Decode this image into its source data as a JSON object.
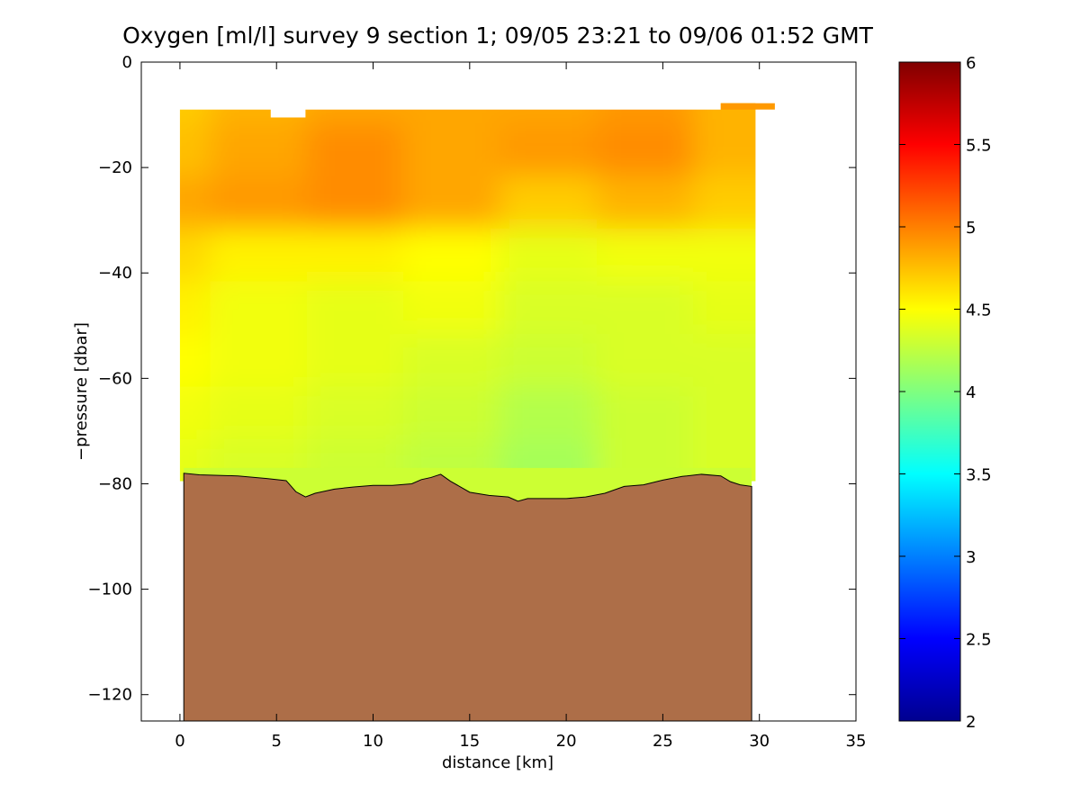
{
  "chart_data": {
    "type": "heatmap",
    "title": "Oxygen [ml/l] survey 9 section 1; 09/05 23:21 to 09/06 01:52 GMT",
    "xlabel": "distance [km]",
    "ylabel": "−pressure [dbar]",
    "xlim": [
      -2,
      35
    ],
    "ylim": [
      -125,
      0
    ],
    "x_ticks": [
      0,
      5,
      10,
      15,
      20,
      25,
      30,
      35
    ],
    "x_tick_labels": [
      "0",
      "5",
      "10",
      "15",
      "20",
      "25",
      "30",
      "35"
    ],
    "y_ticks": [
      0,
      -20,
      -40,
      -60,
      -80,
      -100,
      -120
    ],
    "y_tick_labels": [
      "0",
      "−20",
      "−40",
      "−60",
      "−80",
      "−100",
      "−120"
    ],
    "colorbar": {
      "colormap": "jet",
      "clim": [
        2,
        6
      ],
      "ticks": [
        2,
        2.5,
        3,
        3.5,
        4,
        4.5,
        5,
        5.5,
        6
      ],
      "tick_labels": [
        "2",
        "2.5",
        "3",
        "3.5",
        "4",
        "4.5",
        "5",
        "5.5",
        "6"
      ]
    },
    "field": {
      "x": [
        0,
        5,
        10,
        15,
        20,
        25,
        30
      ],
      "z": [
        -10,
        -20,
        -30,
        -40,
        -50,
        -60,
        -70,
        -80
      ],
      "values": [
        [
          4.7,
          4.8,
          4.85,
          4.85,
          4.85,
          4.9,
          4.8
        ],
        [
          4.75,
          4.85,
          4.95,
          4.85,
          4.9,
          4.95,
          4.8
        ],
        [
          4.85,
          4.9,
          4.95,
          4.85,
          4.7,
          4.8,
          4.7
        ],
        [
          4.65,
          4.55,
          4.55,
          4.5,
          4.4,
          4.45,
          4.45
        ],
        [
          4.55,
          4.45,
          4.4,
          4.45,
          4.35,
          4.35,
          4.4
        ],
        [
          4.5,
          4.45,
          4.4,
          4.35,
          4.3,
          4.35,
          4.35
        ],
        [
          4.45,
          4.4,
          4.35,
          4.3,
          4.2,
          4.3,
          4.35
        ],
        [
          4.4,
          4.35,
          4.3,
          4.25,
          4.15,
          4.3,
          4.35
        ]
      ]
    },
    "bottom_profile": {
      "x": [
        0.2,
        1,
        3,
        4.5,
        5.5,
        6,
        6.5,
        7,
        8,
        9,
        10,
        11,
        12,
        12.5,
        13,
        13.5,
        14,
        15,
        16,
        17,
        17.5,
        18,
        19,
        20,
        21,
        22,
        23,
        24,
        25,
        26,
        27,
        28,
        28.5,
        29,
        29.6
      ],
      "depth": [
        -78,
        -78.3,
        -78.5,
        -79,
        -79.4,
        -81.5,
        -82.5,
        -81.8,
        -81,
        -80.6,
        -80.3,
        -80.3,
        -80,
        -79.2,
        -78.8,
        -78.2,
        -79.5,
        -81.6,
        -82.2,
        -82.5,
        -83.3,
        -82.8,
        -82.8,
        -82.8,
        -82.5,
        -81.8,
        -80.5,
        -80.2,
        -79.3,
        -78.6,
        -78.2,
        -78.5,
        -79.6,
        -80.2,
        -80.5
      ]
    },
    "surface_profile": {
      "x": [
        0,
        4.7,
        4.7,
        6.5,
        6.5,
        28,
        28,
        30.8
      ],
      "depth": [
        -9,
        -9,
        -10.5,
        -10.5,
        -9,
        -9,
        -7.8,
        -7.8
      ]
    },
    "bottom_color": "#ad6e48"
  }
}
